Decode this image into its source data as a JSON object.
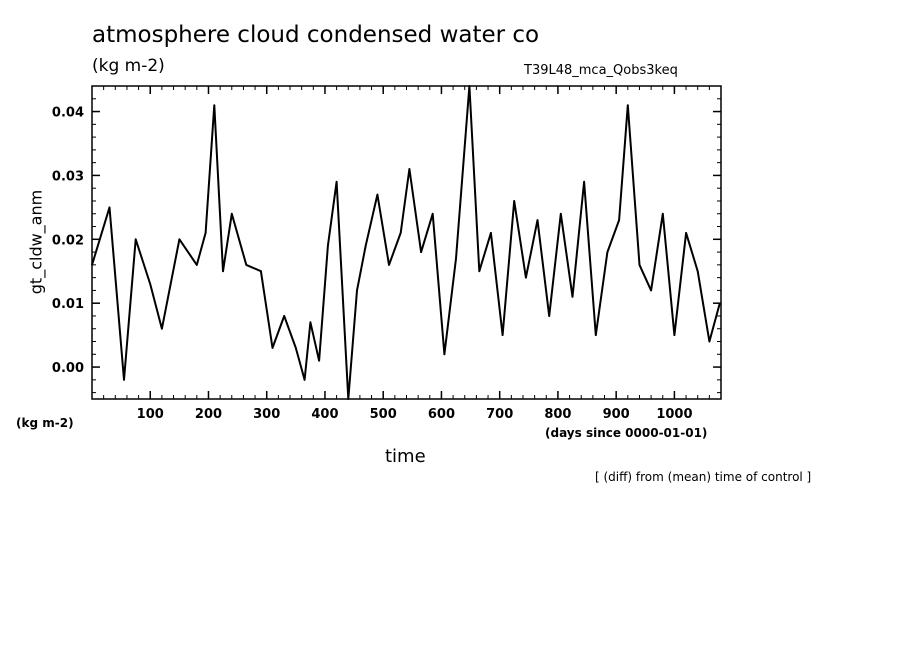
{
  "chart_data": {
    "type": "line",
    "title": "atmosphere cloud condensed water co",
    "units_label": "(kg m-2)",
    "run_label": "T39L48_mca_Qobs3keq",
    "ylabel": "gt_cldw_anm",
    "xlabel": "time",
    "y_unit_label": "(kg m-2)",
    "x_unit_label": "(days since 0000-01-01)",
    "note": "[ (diff) from (mean) time of control ]",
    "xlim": [
      0,
      1080
    ],
    "ylim": [
      -0.005,
      0.044
    ],
    "xticks": [
      100,
      200,
      300,
      400,
      500,
      600,
      700,
      800,
      900,
      1000
    ],
    "yticks": [
      0.0,
      0.01,
      0.02,
      0.03,
      0.04
    ],
    "ytick_labels": [
      "0.00",
      "0.01",
      "0.02",
      "0.03",
      "0.04"
    ],
    "grid": false,
    "series": [
      {
        "color": "#000000",
        "x": [
          0,
          30,
          55,
          75,
          100,
          120,
          150,
          180,
          195,
          210,
          225,
          240,
          265,
          290,
          310,
          330,
          350,
          365,
          375,
          390,
          405,
          420,
          440,
          455,
          470,
          490,
          510,
          530,
          545,
          565,
          585,
          605,
          625,
          648,
          665,
          685,
          705,
          725,
          745,
          765,
          785,
          805,
          825,
          845,
          865,
          885,
          905,
          920,
          940,
          960,
          980,
          1000,
          1020,
          1040,
          1060,
          1078
        ],
        "y": [
          0.016,
          0.025,
          -0.002,
          0.02,
          0.013,
          0.006,
          0.02,
          0.016,
          0.021,
          0.041,
          0.015,
          0.024,
          0.016,
          0.015,
          0.003,
          0.008,
          0.003,
          -0.002,
          0.007,
          0.001,
          0.019,
          0.029,
          -0.006,
          0.012,
          0.019,
          0.027,
          0.016,
          0.021,
          0.031,
          0.018,
          0.024,
          0.002,
          0.017,
          0.044,
          0.015,
          0.021,
          0.005,
          0.026,
          0.014,
          0.023,
          0.008,
          0.024,
          0.011,
          0.029,
          0.005,
          0.018,
          0.023,
          0.041,
          0.016,
          0.012,
          0.024,
          0.005,
          0.021,
          0.015,
          0.004,
          0.01
        ]
      }
    ]
  }
}
